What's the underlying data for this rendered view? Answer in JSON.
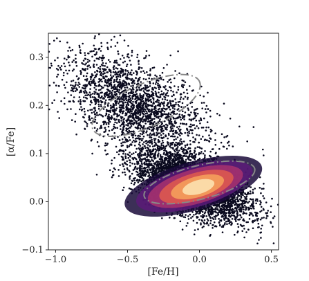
{
  "chart_data": {
    "type": "scatter",
    "title": "",
    "xlabel": "[Fe/H]",
    "ylabel": "[α/Fe]",
    "xlim": [
      -1.05,
      0.55
    ],
    "ylim": [
      -0.1,
      0.35
    ],
    "xticks": [
      -1.0,
      -0.5,
      0.0,
      0.5
    ],
    "xtick_labels": [
      "−1.0",
      "−0.5",
      "0.0",
      "0.5"
    ],
    "yticks": [
      -0.1,
      0.0,
      0.1,
      0.2,
      0.3
    ],
    "ytick_labels": [
      "−0.1",
      "0.0",
      "0.1",
      "0.2",
      "0.3"
    ],
    "grid": false,
    "point_color": "#0a0a1e",
    "density_colormap": [
      "#1a0a3a",
      "#5a1a78",
      "#a8326e",
      "#e05a4e",
      "#f7a35c",
      "#fde5b5"
    ],
    "density_peak": {
      "x": 0.0,
      "y": 0.03
    },
    "series": [
      {
        "description_role": "high-alpha sequence",
        "center": {
          "x": -0.45,
          "y": 0.2
        },
        "spread_x": 0.25,
        "spread_y": 0.045,
        "tilt_per_dex": -0.12,
        "approx_points": 2200
      },
      {
        "description_role": "low-alpha sequence",
        "center": {
          "x": -0.05,
          "y": 0.035
        },
        "spread_x": 0.2,
        "spread_y": 0.03,
        "tilt_per_dex": -0.1,
        "approx_points": 4500
      }
    ],
    "ellipses": [
      {
        "center": {
          "x": -0.37,
          "y": 0.2
        },
        "semi_major_x": 0.62,
        "semi_minor_y": 0.045,
        "angle_deg": -24,
        "style": "dash-dot",
        "color": "#888888"
      },
      {
        "center": {
          "x": 0.0,
          "y": 0.04
        },
        "semi_major_x": 0.6,
        "semi_minor_y": 0.035,
        "angle_deg": -14,
        "style": "dash-dot",
        "color": "#888888"
      }
    ]
  }
}
